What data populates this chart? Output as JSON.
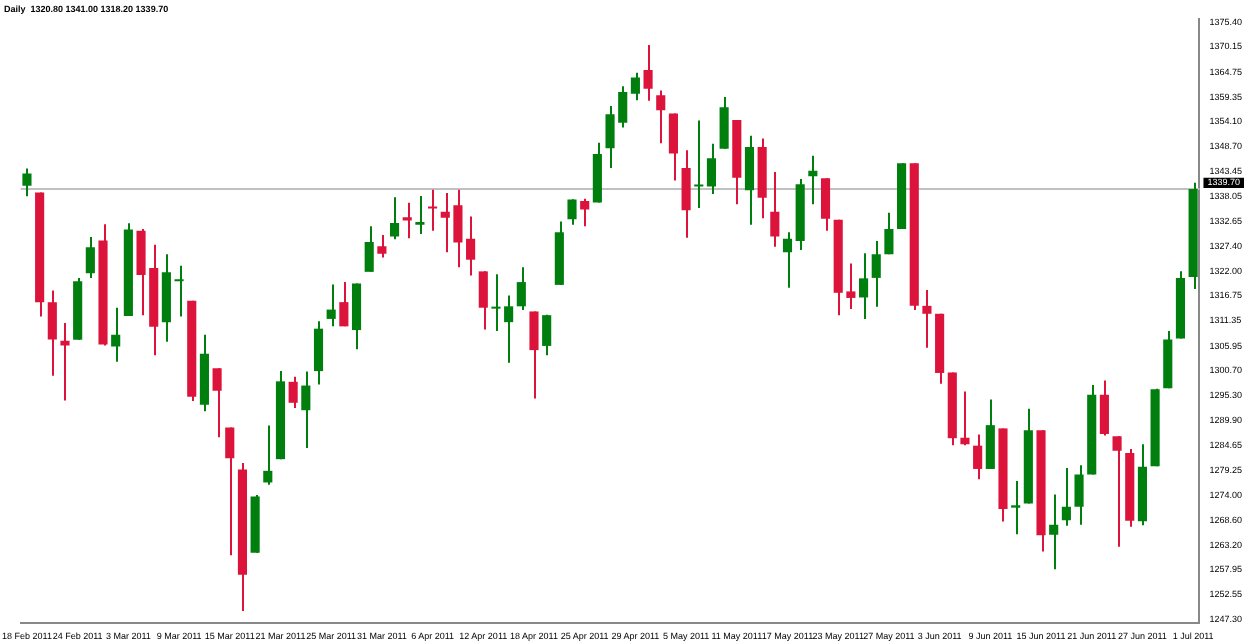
{
  "chart_data": {
    "type": "candlestick",
    "title": "Daily  1320.80 1341.00 1318.20 1339.70",
    "categories": [
      "18 Feb 2011",
      null,
      null,
      null,
      "24 Feb 2011",
      null,
      null,
      null,
      "3 Mar 2011",
      null,
      null,
      null,
      "9 Mar 2011",
      null,
      null,
      null,
      "15 Mar 2011",
      null,
      null,
      null,
      "21 Mar 2011",
      null,
      null,
      null,
      "25 Mar 2011",
      null,
      null,
      null,
      "31 Mar 2011",
      null,
      null,
      null,
      "6 Apr 2011",
      null,
      null,
      null,
      "12 Apr 2011",
      null,
      null,
      null,
      "18 Apr 2011",
      null,
      null,
      null,
      "25 Apr 2011",
      null,
      null,
      null,
      "29 Apr 2011",
      null,
      null,
      null,
      "5 May 2011",
      null,
      null,
      null,
      "11 May 2011",
      null,
      null,
      null,
      "17 May 2011",
      null,
      null,
      null,
      "23 May 2011",
      null,
      null,
      null,
      "27 May 2011",
      null,
      null,
      null,
      "3 Jun 2011",
      null,
      null,
      null,
      "9 Jun 2011",
      null,
      null,
      null,
      "15 Jun 2011",
      null,
      null,
      null,
      "21 Jun 2011",
      null,
      null,
      null,
      "27 Jun 2011",
      null,
      null,
      null,
      "1 Jul 2011"
    ],
    "ohlc": [
      [
        1340.4,
        1344.1,
        1338.1,
        1343.0
      ],
      [
        1338.9,
        1338.9,
        1312.3,
        1315.4
      ],
      [
        1315.4,
        1317.9,
        1299.6,
        1307.4
      ],
      [
        1307.1,
        1310.9,
        1294.3,
        1306.1
      ],
      [
        1307.3,
        1320.6,
        1307.3,
        1319.9
      ],
      [
        1321.6,
        1329.4,
        1320.6,
        1327.2
      ],
      [
        1328.6,
        1332.1,
        1306.1,
        1306.3
      ],
      [
        1305.9,
        1314.2,
        1302.6,
        1308.4
      ],
      [
        1312.4,
        1332.3,
        1312.4,
        1331.0
      ],
      [
        1330.7,
        1331.1,
        1312.6,
        1321.2
      ],
      [
        1322.7,
        1327.7,
        1304.0,
        1310.1
      ],
      [
        1311.1,
        1325.7,
        1306.9,
        1321.8
      ],
      [
        1319.9,
        1323.2,
        1312.3,
        1320.0
      ],
      [
        1315.7,
        1315.7,
        1294.2,
        1295.1
      ],
      [
        1293.4,
        1308.4,
        1292.0,
        1304.3
      ],
      [
        1301.2,
        1301.2,
        1286.4,
        1296.4
      ],
      [
        1288.5,
        1288.5,
        1261.1,
        1281.9
      ],
      [
        1279.5,
        1280.9,
        1249.1,
        1256.9
      ],
      [
        1261.6,
        1274.0,
        1261.6,
        1273.7
      ],
      [
        1276.7,
        1288.9,
        1276.2,
        1279.2
      ],
      [
        1281.7,
        1300.6,
        1281.7,
        1298.4
      ],
      [
        1298.3,
        1299.4,
        1292.7,
        1293.8
      ],
      [
        1292.2,
        1300.5,
        1284.1,
        1297.5
      ],
      [
        1300.6,
        1311.3,
        1297.7,
        1309.7
      ],
      [
        1311.8,
        1319.2,
        1310.2,
        1313.8
      ],
      [
        1315.4,
        1319.7,
        1310.2,
        1310.2
      ],
      [
        1309.4,
        1319.4,
        1305.3,
        1319.4
      ],
      [
        1321.9,
        1331.7,
        1321.9,
        1328.3
      ],
      [
        1327.4,
        1329.8,
        1325.0,
        1325.8
      ],
      [
        1329.5,
        1337.9,
        1328.9,
        1332.4
      ],
      [
        1333.6,
        1336.7,
        1329.1,
        1332.9
      ],
      [
        1332.0,
        1338.2,
        1330.0,
        1332.6
      ],
      [
        1335.9,
        1339.5,
        1330.7,
        1335.5
      ],
      [
        1334.8,
        1338.8,
        1326.1,
        1333.5
      ],
      [
        1336.2,
        1339.5,
        1322.9,
        1328.2
      ],
      [
        1329.0,
        1333.8,
        1321.1,
        1324.5
      ],
      [
        1322.0,
        1322.0,
        1309.5,
        1314.2
      ],
      [
        1314.0,
        1321.4,
        1309.2,
        1314.4
      ],
      [
        1311.1,
        1316.8,
        1302.4,
        1314.5
      ],
      [
        1314.5,
        1322.9,
        1313.7,
        1319.7
      ],
      [
        1313.4,
        1313.4,
        1294.7,
        1305.1
      ],
      [
        1306.0,
        1312.7,
        1304.0,
        1312.6
      ],
      [
        1319.1,
        1332.7,
        1319.1,
        1330.4
      ],
      [
        1333.2,
        1337.5,
        1332.0,
        1337.4
      ],
      [
        1337.1,
        1337.6,
        1331.7,
        1335.3
      ],
      [
        1336.8,
        1349.6,
        1336.8,
        1347.2
      ],
      [
        1348.4,
        1357.5,
        1344.2,
        1355.7
      ],
      [
        1353.9,
        1361.7,
        1352.9,
        1360.5
      ],
      [
        1360.1,
        1364.6,
        1358.7,
        1363.6
      ],
      [
        1365.2,
        1370.6,
        1358.6,
        1361.2
      ],
      [
        1359.8,
        1360.8,
        1349.5,
        1356.6
      ],
      [
        1355.9,
        1355.9,
        1341.5,
        1347.3
      ],
      [
        1344.2,
        1348.0,
        1329.2,
        1335.1
      ],
      [
        1340.2,
        1354.4,
        1335.6,
        1340.2
      ],
      [
        1340.2,
        1349.4,
        1338.6,
        1346.3
      ],
      [
        1348.3,
        1359.4,
        1348.3,
        1357.2
      ],
      [
        1354.5,
        1354.5,
        1336.4,
        1342.1
      ],
      [
        1339.4,
        1351.1,
        1332.0,
        1348.7
      ],
      [
        1348.7,
        1350.5,
        1333.4,
        1337.8
      ],
      [
        1334.8,
        1343.3,
        1327.3,
        1329.5
      ],
      [
        1326.1,
        1330.4,
        1318.5,
        1329.0
      ],
      [
        1328.5,
        1341.8,
        1326.6,
        1340.7
      ],
      [
        1342.4,
        1346.8,
        1336.4,
        1343.6
      ],
      [
        1342.0,
        1342.0,
        1330.7,
        1333.3
      ],
      [
        1333.1,
        1333.1,
        1312.6,
        1317.4
      ],
      [
        1317.7,
        1323.7,
        1313.9,
        1316.3
      ],
      [
        1316.4,
        1325.9,
        1311.8,
        1320.5
      ],
      [
        1320.6,
        1328.5,
        1314.4,
        1325.7
      ],
      [
        1325.7,
        1334.6,
        1325.7,
        1331.1
      ],
      [
        1331.1,
        1345.2,
        1331.1,
        1345.2
      ],
      [
        1345.2,
        1345.2,
        1313.7,
        1314.6
      ],
      [
        1314.6,
        1318.0,
        1305.6,
        1312.9
      ],
      [
        1312.9,
        1312.9,
        1297.9,
        1300.2
      ],
      [
        1300.3,
        1300.3,
        1284.7,
        1286.2
      ],
      [
        1286.3,
        1296.2,
        1284.7,
        1284.9
      ],
      [
        1284.6,
        1287.0,
        1277.4,
        1279.6
      ],
      [
        1279.6,
        1294.5,
        1279.6,
        1289.0
      ],
      [
        1288.3,
        1288.3,
        1268.3,
        1271.0
      ],
      [
        1271.3,
        1277.0,
        1265.6,
        1271.8
      ],
      [
        1272.2,
        1292.5,
        1272.2,
        1287.9
      ],
      [
        1287.9,
        1287.9,
        1261.9,
        1265.4
      ],
      [
        1265.5,
        1274.1,
        1258.1,
        1267.6
      ],
      [
        1268.6,
        1279.8,
        1267.4,
        1271.5
      ],
      [
        1271.5,
        1280.4,
        1267.6,
        1278.4
      ],
      [
        1278.4,
        1297.6,
        1278.4,
        1295.5
      ],
      [
        1295.5,
        1298.6,
        1286.8,
        1287.1
      ],
      [
        1286.6,
        1286.6,
        1262.9,
        1283.5
      ],
      [
        1283.0,
        1283.9,
        1267.2,
        1268.5
      ],
      [
        1268.4,
        1284.9,
        1267.5,
        1280.1
      ],
      [
        1280.2,
        1296.8,
        1280.2,
        1296.7
      ],
      [
        1296.9,
        1309.2,
        1296.9,
        1307.4
      ],
      [
        1307.6,
        1322.0,
        1307.6,
        1320.6
      ],
      [
        1320.8,
        1341.0,
        1318.2,
        1339.7
      ]
    ],
    "colors": [
      "#007f0e",
      "#dc143c",
      "#dc143c",
      "#dc143c",
      "#007f0e",
      "#007f0e",
      "#dc143c",
      "#007f0e",
      "#007f0e",
      "#dc143c",
      "#dc143c",
      "#007f0e",
      "#007f0e",
      "#dc143c",
      "#007f0e",
      "#dc143c",
      "#dc143c",
      "#dc143c",
      "#007f0e",
      "#007f0e",
      "#007f0e",
      "#dc143c",
      "#007f0e",
      "#007f0e",
      "#007f0e",
      "#dc143c",
      "#007f0e",
      "#007f0e",
      "#dc143c",
      "#007f0e",
      "#dc143c",
      "#007f0e",
      "#dc143c",
      "#dc143c",
      "#dc143c",
      "#dc143c",
      "#dc143c",
      "#007f0e",
      "#007f0e",
      "#007f0e",
      "#dc143c",
      "#007f0e",
      "#007f0e",
      "#007f0e",
      "#dc143c",
      "#007f0e",
      "#007f0e",
      "#007f0e",
      "#007f0e",
      "#dc143c",
      "#dc143c",
      "#dc143c",
      "#dc143c",
      "#007f0e",
      "#007f0e",
      "#007f0e",
      "#dc143c",
      "#007f0e",
      "#dc143c",
      "#dc143c",
      "#007f0e",
      "#007f0e",
      "#007f0e",
      "#dc143c",
      "#dc143c",
      "#dc143c",
      "#007f0e",
      "#007f0e",
      "#007f0e",
      "#007f0e",
      "#dc143c",
      "#dc143c",
      "#dc143c",
      "#dc143c",
      "#dc143c",
      "#dc143c",
      "#007f0e",
      "#dc143c",
      "#007f0e",
      "#007f0e",
      "#dc143c",
      "#007f0e",
      "#007f0e",
      "#007f0e",
      "#007f0e",
      "#dc143c",
      "#dc143c",
      "#dc143c",
      "#007f0e",
      "#007f0e",
      "#007f0e",
      "#007f0e",
      "#007f0e"
    ],
    "ylim": [
      1246.5,
      1376.2
    ],
    "yticks": [
      {
        "value": 1375.4,
        "label": "1375.40"
      },
      {
        "value": 1370.15,
        "label": "1370.15"
      },
      {
        "value": 1364.75,
        "label": "1364.75"
      },
      {
        "value": 1359.35,
        "label": "1359.35"
      },
      {
        "value": 1354.1,
        "label": "1354.10"
      },
      {
        "value": 1348.7,
        "label": "1348.70"
      },
      {
        "value": 1343.45,
        "label": "1343.45"
      },
      {
        "value": 1338.05,
        "label": "1338.05"
      },
      {
        "value": 1332.65,
        "label": "1332.65"
      },
      {
        "value": 1327.4,
        "label": "1327.40"
      },
      {
        "value": 1322,
        "label": "1322.00"
      },
      {
        "value": 1316.75,
        "label": "1316.75"
      },
      {
        "value": 1311.35,
        "label": "1311.35"
      },
      {
        "value": 1305.95,
        "label": "1305.95"
      },
      {
        "value": 1300.7,
        "label": "1300.70"
      },
      {
        "value": 1295.3,
        "label": "1295.30"
      },
      {
        "value": 1289.9,
        "label": "1289.90"
      },
      {
        "value": 1284.65,
        "label": "1284.65"
      },
      {
        "value": 1279.25,
        "label": "1279.25"
      },
      {
        "value": 1274,
        "label": "1274.00"
      },
      {
        "value": 1268.6,
        "label": "1268.60"
      },
      {
        "value": 1263.2,
        "label": "1263.20"
      },
      {
        "value": 1257.95,
        "label": "1257.95"
      },
      {
        "value": 1252.55,
        "label": "1252.55"
      },
      {
        "value": 1247.3,
        "label": "1247.30"
      }
    ],
    "ref_lines": [
      {
        "axis": "y",
        "value": 1339.7,
        "label": "1339.70",
        "color": "#c0c0c0"
      }
    ]
  }
}
